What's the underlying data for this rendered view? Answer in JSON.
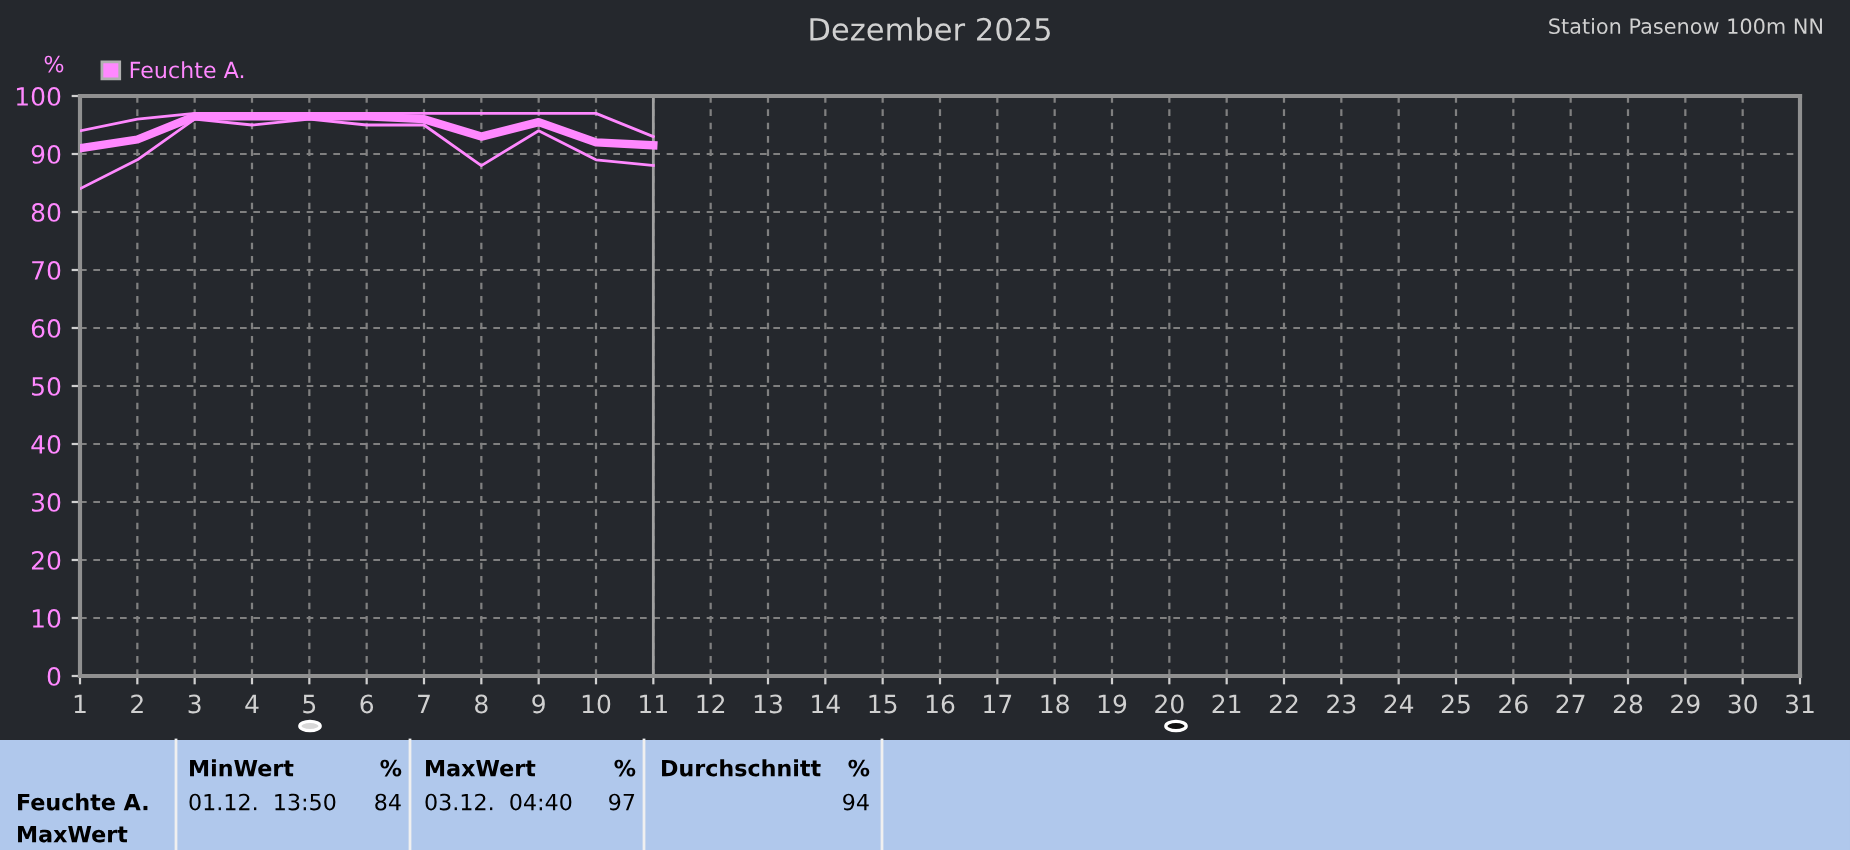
{
  "chart_data": {
    "type": "line",
    "title": "Dezember 2025",
    "subtitle": "Station Pasenow 100m NN",
    "ylabel": "%",
    "x": [
      1,
      2,
      3,
      4,
      5,
      6,
      7,
      8,
      9,
      10,
      11
    ],
    "series": [
      {
        "name": "Feuchte A.",
        "color": "#ff88ff",
        "values": [
          91,
          92.5,
          96.5,
          96.5,
          96.5,
          96.5,
          96,
          93,
          95.5,
          92,
          91.5
        ]
      },
      {
        "color": "#ff88ff",
        "values": [
          94,
          96,
          97,
          97,
          97,
          97,
          97,
          97,
          97,
          97,
          93
        ]
      },
      {
        "color": "#ff88ff",
        "values": [
          84,
          89,
          96,
          95,
          96,
          95,
          95,
          88,
          94,
          89,
          88
        ]
      }
    ],
    "xlim": [
      1,
      31
    ],
    "xticks": [
      1,
      2,
      3,
      4,
      5,
      6,
      7,
      8,
      9,
      10,
      11,
      12,
      13,
      14,
      15,
      16,
      17,
      18,
      19,
      20,
      21,
      22,
      23,
      24,
      25,
      26,
      27,
      28,
      29,
      30,
      31
    ],
    "ylim": [
      0,
      100
    ],
    "yticks": [
      0,
      10,
      20,
      30,
      40,
      50,
      60,
      70,
      80,
      90,
      100
    ],
    "grid": true,
    "legend": "top left",
    "marker": "none",
    "line_style": "solid",
    "ref_lines": [
      {
        "axis": "x",
        "value": 11,
        "color": "#a0a0a0"
      }
    ],
    "annotations": [
      "Feuchte A.",
      "MaxWert",
      "MinWert",
      "%",
      "01.12.  13:50",
      "84",
      "MaxWert",
      "%",
      "03.12.  04:40",
      "97",
      "Durchschnitt",
      "%",
      "94"
    ]
  }
}
